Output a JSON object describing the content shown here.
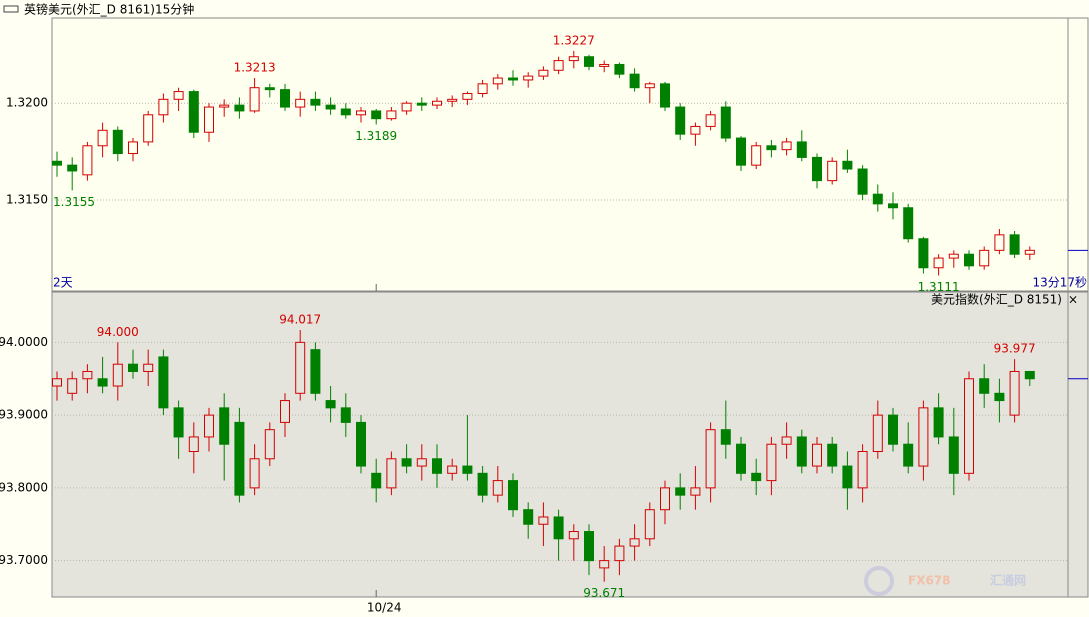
{
  "chart_data": [
    {
      "type": "candlestick",
      "title": "英镑美元(外汇_D 8161)15分钟",
      "left_note": "2天",
      "right_note": "13分17秒",
      "up_color": "#d40000",
      "down_color": "#008000",
      "background": "#fffff0",
      "ylim": [
        1.3103,
        1.3244
      ],
      "yticks": [
        {
          "value": 1.32,
          "label": "1.3200"
        },
        {
          "value": 1.315,
          "label": "1.3150"
        }
      ],
      "xticks": [
        {
          "value": 21,
          "label": "10/24"
        }
      ],
      "annotations": [
        {
          "value": 1.3155,
          "label": "1.3155"
        },
        {
          "value": 1.3213,
          "label": "1.3213"
        },
        {
          "value": 1.3189,
          "label": "1.3189"
        },
        {
          "value": 1.3227,
          "label": "1.3227"
        },
        {
          "value": 1.3111,
          "label": "1.3111"
        }
      ],
      "ohlc": [
        [
          1.317,
          1.3175,
          1.3162,
          1.3168
        ],
        [
          1.3168,
          1.3172,
          1.3155,
          1.3165
        ],
        [
          1.3163,
          1.318,
          1.316,
          1.3178
        ],
        [
          1.3178,
          1.319,
          1.3172,
          1.3186
        ],
        [
          1.3186,
          1.3188,
          1.317,
          1.3174
        ],
        [
          1.3174,
          1.3182,
          1.317,
          1.318
        ],
        [
          1.318,
          1.3196,
          1.3178,
          1.3194
        ],
        [
          1.3194,
          1.3205,
          1.319,
          1.3202
        ],
        [
          1.3202,
          1.3208,
          1.3196,
          1.3206
        ],
        [
          1.3206,
          1.3207,
          1.3182,
          1.3185
        ],
        [
          1.3185,
          1.32,
          1.318,
          1.3198
        ],
        [
          1.3198,
          1.3202,
          1.3193,
          1.3199
        ],
        [
          1.3199,
          1.3203,
          1.3192,
          1.3196
        ],
        [
          1.3196,
          1.3213,
          1.3195,
          1.3208
        ],
        [
          1.3208,
          1.321,
          1.3203,
          1.3207
        ],
        [
          1.3207,
          1.321,
          1.3196,
          1.3198
        ],
        [
          1.3198,
          1.3206,
          1.3193,
          1.3202
        ],
        [
          1.3202,
          1.3206,
          1.3196,
          1.3199
        ],
        [
          1.3199,
          1.3203,
          1.3194,
          1.3197
        ],
        [
          1.3197,
          1.32,
          1.3192,
          1.3194
        ],
        [
          1.3194,
          1.3198,
          1.319,
          1.3196
        ],
        [
          1.3196,
          1.3197,
          1.3189,
          1.3192
        ],
        [
          1.3192,
          1.3198,
          1.3191,
          1.3196
        ],
        [
          1.3196,
          1.3201,
          1.3194,
          1.32
        ],
        [
          1.32,
          1.3203,
          1.3196,
          1.3199
        ],
        [
          1.3199,
          1.3203,
          1.3197,
          1.3201
        ],
        [
          1.3201,
          1.3204,
          1.3198,
          1.3202
        ],
        [
          1.3202,
          1.3206,
          1.3199,
          1.3205
        ],
        [
          1.3205,
          1.3212,
          1.3203,
          1.321
        ],
        [
          1.321,
          1.3215,
          1.3207,
          1.3213
        ],
        [
          1.3213,
          1.3217,
          1.3209,
          1.3212
        ],
        [
          1.3212,
          1.3216,
          1.3208,
          1.3214
        ],
        [
          1.3214,
          1.3219,
          1.3212,
          1.3217
        ],
        [
          1.3217,
          1.3224,
          1.3215,
          1.3222
        ],
        [
          1.3222,
          1.3227,
          1.3218,
          1.3224
        ],
        [
          1.3224,
          1.3225,
          1.3217,
          1.3219
        ],
        [
          1.3219,
          1.3222,
          1.3216,
          1.322
        ],
        [
          1.322,
          1.3221,
          1.3213,
          1.3215
        ],
        [
          1.3215,
          1.3218,
          1.3206,
          1.3208
        ],
        [
          1.3208,
          1.3211,
          1.32,
          1.321
        ],
        [
          1.321,
          1.3211,
          1.3196,
          1.3198
        ],
        [
          1.3198,
          1.32,
          1.3181,
          1.3184
        ],
        [
          1.3184,
          1.319,
          1.3178,
          1.3188
        ],
        [
          1.3188,
          1.3196,
          1.3186,
          1.3194
        ],
        [
          1.3198,
          1.3201,
          1.318,
          1.3182
        ],
        [
          1.3182,
          1.3183,
          1.3165,
          1.3168
        ],
        [
          1.3168,
          1.318,
          1.3166,
          1.3178
        ],
        [
          1.3178,
          1.3181,
          1.3172,
          1.3176
        ],
        [
          1.3176,
          1.3182,
          1.3173,
          1.318
        ],
        [
          1.318,
          1.3186,
          1.317,
          1.3172
        ],
        [
          1.3172,
          1.3174,
          1.3156,
          1.316
        ],
        [
          1.316,
          1.3172,
          1.3158,
          1.317
        ],
        [
          1.317,
          1.3176,
          1.3164,
          1.3166
        ],
        [
          1.3166,
          1.3168,
          1.315,
          1.3153
        ],
        [
          1.3153,
          1.3158,
          1.3144,
          1.3148
        ],
        [
          1.3148,
          1.3154,
          1.314,
          1.3146
        ],
        [
          1.3146,
          1.3148,
          1.3128,
          1.313
        ],
        [
          1.313,
          1.3131,
          1.3112,
          1.3115
        ],
        [
          1.3115,
          1.3122,
          1.3111,
          1.312
        ],
        [
          1.312,
          1.3124,
          1.3115,
          1.3122
        ],
        [
          1.3122,
          1.3124,
          1.3114,
          1.3116
        ],
        [
          1.3116,
          1.3126,
          1.3114,
          1.3124
        ],
        [
          1.3124,
          1.3135,
          1.3122,
          1.3132
        ],
        [
          1.3132,
          1.3134,
          1.312,
          1.3122
        ],
        [
          1.3122,
          1.3126,
          1.3119,
          1.3124
        ]
      ]
    },
    {
      "type": "candlestick",
      "title": "美元指数(外汇_D 8151)",
      "close_label": "×",
      "up_color": "#d40000",
      "down_color": "#008000",
      "background": "#e4e4dc",
      "ylim": [
        93.65,
        94.05
      ],
      "yticks": [
        {
          "value": 94,
          "label": "94.0000"
        },
        {
          "value": 93.9,
          "label": "93.9000"
        },
        {
          "value": 93.8,
          "label": "93.8000"
        },
        {
          "value": 93.7,
          "label": "93.7000"
        }
      ],
      "xticks": [
        {
          "value": 21,
          "label": "10/24"
        }
      ],
      "annotations": [
        {
          "value": 94.0,
          "label": "94.000"
        },
        {
          "value": 94.017,
          "label": "94.017"
        },
        {
          "value": 93.671,
          "label": "93.671"
        },
        {
          "value": 93.977,
          "label": "93.977"
        }
      ],
      "ohlc": [
        [
          93.94,
          93.96,
          93.92,
          93.95
        ],
        [
          93.93,
          93.96,
          93.92,
          93.95
        ],
        [
          93.95,
          93.97,
          93.93,
          93.96
        ],
        [
          93.95,
          93.98,
          93.93,
          93.94
        ],
        [
          93.94,
          94.0,
          93.92,
          93.97
        ],
        [
          93.97,
          93.99,
          93.95,
          93.96
        ],
        [
          93.96,
          93.99,
          93.94,
          93.97
        ],
        [
          93.98,
          93.99,
          93.9,
          93.91
        ],
        [
          93.91,
          93.92,
          93.84,
          93.87
        ],
        [
          93.85,
          93.89,
          93.82,
          93.87
        ],
        [
          93.87,
          93.91,
          93.85,
          93.9
        ],
        [
          93.91,
          93.93,
          93.81,
          93.86
        ],
        [
          93.89,
          93.91,
          93.78,
          93.79
        ],
        [
          93.8,
          93.86,
          93.79,
          93.84
        ],
        [
          93.84,
          93.89,
          93.83,
          93.88
        ],
        [
          93.89,
          93.93,
          93.87,
          93.92
        ],
        [
          93.93,
          94.017,
          93.92,
          94.0
        ],
        [
          93.99,
          94.0,
          93.92,
          93.93
        ],
        [
          93.92,
          93.94,
          93.89,
          93.91
        ],
        [
          93.91,
          93.93,
          93.87,
          93.89
        ],
        [
          93.89,
          93.9,
          93.82,
          93.83
        ],
        [
          93.82,
          93.84,
          93.78,
          93.8
        ],
        [
          93.8,
          93.85,
          93.79,
          93.84
        ],
        [
          93.84,
          93.86,
          93.82,
          93.83
        ],
        [
          93.83,
          93.86,
          93.81,
          93.84
        ],
        [
          93.84,
          93.86,
          93.8,
          93.82
        ],
        [
          93.82,
          93.84,
          93.81,
          93.83
        ],
        [
          93.83,
          93.9,
          93.81,
          93.82
        ],
        [
          93.82,
          93.83,
          93.78,
          93.79
        ],
        [
          93.79,
          93.83,
          93.78,
          93.81
        ],
        [
          93.81,
          93.82,
          93.76,
          93.77
        ],
        [
          93.77,
          93.78,
          93.73,
          93.75
        ],
        [
          93.75,
          93.78,
          93.72,
          93.76
        ],
        [
          93.76,
          93.77,
          93.7,
          93.73
        ],
        [
          93.73,
          93.75,
          93.7,
          93.74
        ],
        [
          93.74,
          93.75,
          93.68,
          93.7
        ],
        [
          93.69,
          93.72,
          93.671,
          93.7
        ],
        [
          93.7,
          93.73,
          93.68,
          93.72
        ],
        [
          93.72,
          93.75,
          93.7,
          93.73
        ],
        [
          93.73,
          93.78,
          93.72,
          93.77
        ],
        [
          93.77,
          93.81,
          93.75,
          93.8
        ],
        [
          93.8,
          93.82,
          93.77,
          93.79
        ],
        [
          93.79,
          93.83,
          93.77,
          93.8
        ],
        [
          93.8,
          93.89,
          93.78,
          93.88
        ],
        [
          93.88,
          93.92,
          93.84,
          93.86
        ],
        [
          93.86,
          93.87,
          93.81,
          93.82
        ],
        [
          93.82,
          93.84,
          93.79,
          93.81
        ],
        [
          93.81,
          93.87,
          93.79,
          93.86
        ],
        [
          93.86,
          93.89,
          93.84,
          93.87
        ],
        [
          93.87,
          93.88,
          93.82,
          93.83
        ],
        [
          93.83,
          93.87,
          93.82,
          93.86
        ],
        [
          93.86,
          93.87,
          93.82,
          93.83
        ],
        [
          93.83,
          93.85,
          93.77,
          93.8
        ],
        [
          93.8,
          93.86,
          93.78,
          93.85
        ],
        [
          93.85,
          93.92,
          93.84,
          93.9
        ],
        [
          93.9,
          93.91,
          93.85,
          93.86
        ],
        [
          93.86,
          93.89,
          93.82,
          93.83
        ],
        [
          93.83,
          93.92,
          93.81,
          93.91
        ],
        [
          93.91,
          93.93,
          93.86,
          93.87
        ],
        [
          93.87,
          93.91,
          93.79,
          93.82
        ],
        [
          93.82,
          93.96,
          93.81,
          93.95
        ],
        [
          93.95,
          93.97,
          93.91,
          93.93
        ],
        [
          93.93,
          93.95,
          93.89,
          93.92
        ],
        [
          93.9,
          93.977,
          93.89,
          93.96
        ],
        [
          93.96,
          93.96,
          93.94,
          93.95
        ]
      ]
    }
  ],
  "watermark": {
    "brand": "FX678",
    "name": "汇通网"
  }
}
